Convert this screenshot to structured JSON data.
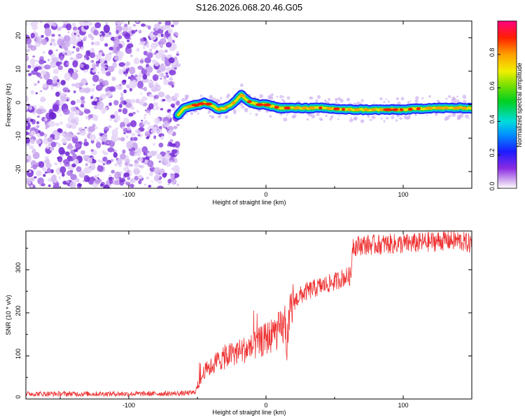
{
  "title": "S126.2026.068.20.46.G05",
  "chart_data": [
    {
      "type": "heatmap",
      "name": "spectrogram",
      "xlabel": "Height of straight line (km)",
      "ylabel": "Frequency (Hz)",
      "xlim": [
        -175,
        150
      ],
      "ylim": [
        -25,
        25
      ],
      "xticks": [
        "-100",
        "0",
        "100"
      ],
      "yticks": [
        "20",
        "10",
        "0",
        "-10",
        "-20"
      ],
      "colorbar": {
        "label": "Normalized spectral amplitude",
        "range": [
          0,
          1
        ],
        "ticks": [
          "0.0",
          "0.2",
          "0.4",
          "0.6",
          "0.8"
        ]
      },
      "noise_region_x": [
        -175,
        -64
      ],
      "signal_trace": {
        "x": [
          -64,
          -60,
          -55,
          -50,
          -45,
          -40,
          -35,
          -30,
          -25,
          -20,
          -18,
          -15,
          -10,
          -5,
          0,
          10,
          20,
          40,
          60,
          80,
          100,
          120,
          140,
          150
        ],
        "freq": [
          -3,
          -1,
          -0.5,
          0,
          0.5,
          0,
          -1.5,
          -1,
          0,
          2,
          3,
          1.5,
          0.5,
          0,
          0,
          -1,
          -1,
          -1,
          -1.5,
          -1.5,
          -1.5,
          -1,
          -1,
          -1
        ]
      }
    },
    {
      "type": "line",
      "name": "snr",
      "xlabel": "Height of straight line (km)",
      "ylabel": "SNR (10 * v/v)",
      "xlim": [
        -175,
        150
      ],
      "ylim": [
        0,
        390
      ],
      "xticks": [
        "-100",
        "0",
        "100"
      ],
      "yticks": [
        "0",
        "100",
        "200",
        "300"
      ],
      "series": [
        {
          "name": "SNR",
          "color": "#ee3333",
          "x": [
            -175,
            -150,
            -120,
            -90,
            -60,
            -52,
            -48,
            -45,
            -40,
            -35,
            -30,
            -25,
            -20,
            -15,
            -10,
            -5,
            0,
            5,
            10,
            14,
            15,
            16,
            18,
            20,
            25,
            30,
            40,
            50,
            55,
            60,
            62,
            63,
            65,
            70,
            80,
            90,
            100,
            110,
            120,
            130,
            140,
            150
          ],
          "values": [
            12,
            12,
            12,
            12,
            13,
            15,
            40,
            65,
            75,
            90,
            95,
            105,
            110,
            115,
            120,
            130,
            140,
            150,
            160,
            170,
            110,
            150,
            200,
            225,
            240,
            250,
            262,
            272,
            280,
            285,
            285,
            360,
            355,
            358,
            358,
            360,
            360,
            362,
            365,
            368,
            368,
            360
          ]
        }
      ]
    }
  ]
}
